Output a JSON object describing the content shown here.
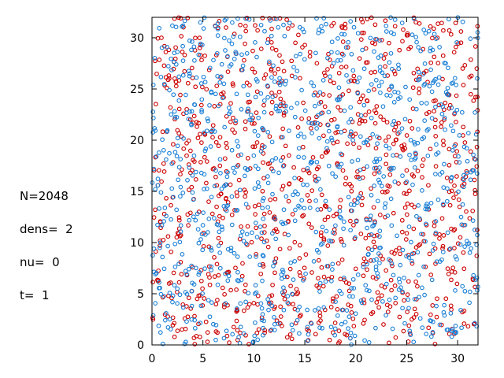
{
  "info": {
    "n_label": "N=2048",
    "dens_label": "dens=  2",
    "nu_label": "nu=  0",
    "t_label": "t=  1"
  },
  "colors": {
    "series_a": "#cc0000",
    "series_b": "#1a7fd6"
  },
  "chart_data": {
    "type": "scatter",
    "title": "",
    "xlabel": "",
    "ylabel": "",
    "xlim": [
      0,
      32
    ],
    "ylim": [
      0,
      32
    ],
    "xticks": [
      0,
      5,
      10,
      15,
      20,
      25,
      30
    ],
    "yticks": [
      0,
      5,
      10,
      15,
      20,
      25,
      30
    ],
    "grid": false,
    "legend": "none",
    "marker": "open-circle",
    "particle_count": 2048,
    "density": 2,
    "series": [
      {
        "color": "#cc0000",
        "count": 1024
      },
      {
        "color": "#1a7fd6",
        "count": 1024
      }
    ]
  }
}
